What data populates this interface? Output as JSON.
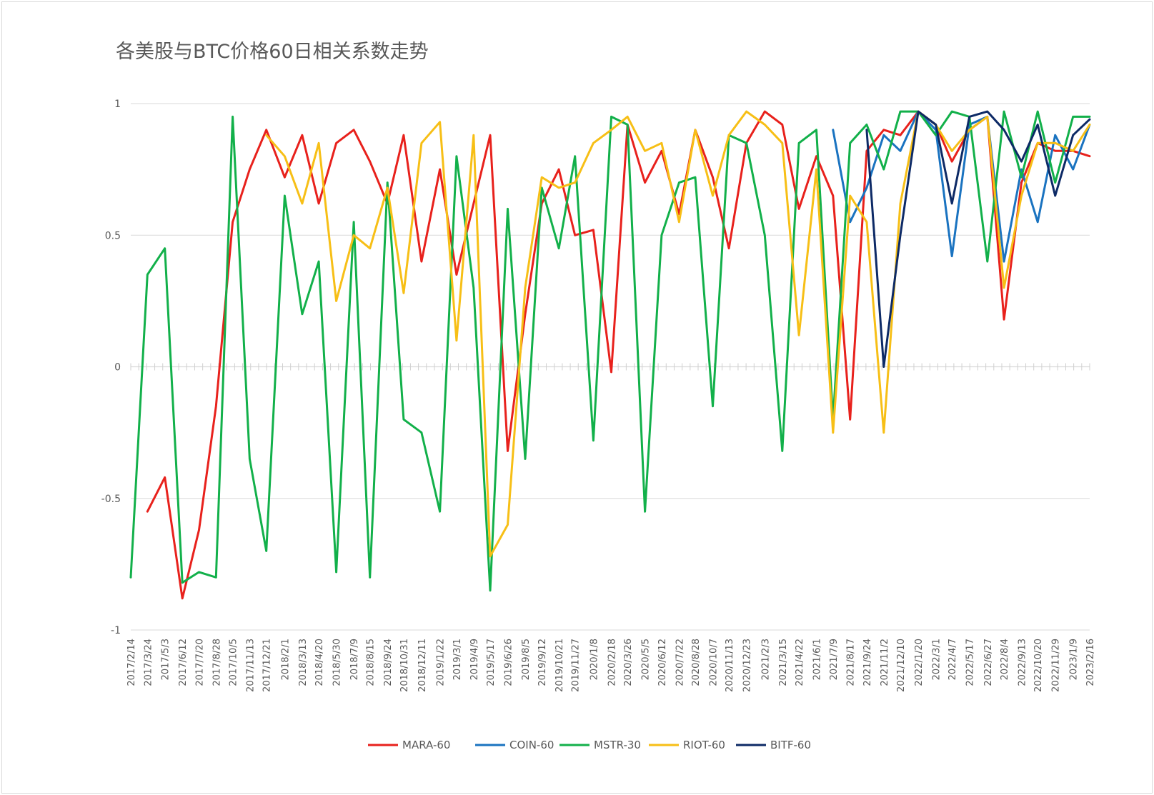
{
  "chart_data": {
    "type": "line",
    "title": "各美股与BTC价格60日相关系数走势",
    "xlabel": "",
    "ylabel": "",
    "ylim": [
      -1,
      1
    ],
    "yticks": [
      "1",
      "0.5",
      "0",
      "-0.5",
      "-1"
    ],
    "grid": true,
    "legend_position": "bottom",
    "x_start": "2017-02-14",
    "x_end": "2023-02-16",
    "categories": [
      "2017/2/14",
      "2017/3/24",
      "2017/5/3",
      "2017/6/12",
      "2017/7/20",
      "2017/8/28",
      "2017/10/5",
      "2017/11/13",
      "2017/12/21",
      "2018/2/1",
      "2018/3/13",
      "2018/4/20",
      "2018/5/30",
      "2018/7/9",
      "2018/8/15",
      "2018/9/24",
      "2018/10/31",
      "2018/12/11",
      "2019/1/22",
      "2019/3/1",
      "2019/4/9",
      "2019/5/17",
      "2019/6/26",
      "2019/8/5",
      "2019/9/12",
      "2019/10/21",
      "2019/11/27",
      "2020/1/8",
      "2020/2/18",
      "2020/3/26",
      "2020/5/5",
      "2020/6/12",
      "2020/7/22",
      "2020/8/28",
      "2020/10/7",
      "2020/11/13",
      "2020/12/23",
      "2021/2/3",
      "2021/3/15",
      "2021/4/22",
      "2021/6/1",
      "2021/7/9",
      "2021/8/17",
      "2021/9/24",
      "2021/11/2",
      "2021/12/10",
      "2022/1/20",
      "2022/3/1",
      "2022/4/7",
      "2022/5/17",
      "2022/6/27",
      "2022/8/4",
      "2022/9/13",
      "2022/10/20",
      "2022/11/29",
      "2023/1/9",
      "2023/2/16"
    ],
    "series": [
      {
        "name": "MARA-60",
        "color": "#e8211c",
        "x": [
          "2017/3/24",
          "2017/5/3",
          "2017/6/12",
          "2017/7/20",
          "2017/8/28",
          "2017/10/5",
          "2017/11/13",
          "2017/12/21",
          "2018/2/1",
          "2018/3/13",
          "2018/4/20",
          "2018/5/30",
          "2018/7/9",
          "2018/8/15",
          "2018/9/24",
          "2018/10/31",
          "2018/12/11",
          "2019/1/22",
          "2019/3/1",
          "2019/4/9",
          "2019/5/17",
          "2019/6/26",
          "2019/8/5",
          "2019/9/12",
          "2019/10/21",
          "2019/11/27",
          "2020/1/8",
          "2020/2/18",
          "2020/3/26",
          "2020/5/5",
          "2020/6/12",
          "2020/7/22",
          "2020/8/28",
          "2020/10/7",
          "2020/11/13",
          "2020/12/23",
          "2021/2/3",
          "2021/3/15",
          "2021/4/22",
          "2021/6/1",
          "2021/7/9",
          "2021/8/17",
          "2021/9/24",
          "2021/11/2",
          "2021/12/10",
          "2022/1/20",
          "2022/3/1",
          "2022/4/7",
          "2022/5/17",
          "2022/6/27",
          "2022/8/4",
          "2022/9/13",
          "2022/10/20",
          "2022/11/29",
          "2023/1/9",
          "2023/2/16"
        ],
        "values": [
          -0.55,
          -0.42,
          -0.88,
          -0.62,
          -0.15,
          0.55,
          0.75,
          0.9,
          0.72,
          0.88,
          0.62,
          0.85,
          0.9,
          0.78,
          0.62,
          0.88,
          0.4,
          0.75,
          0.35,
          0.62,
          0.88,
          -0.32,
          0.2,
          0.62,
          0.75,
          0.5,
          0.52,
          -0.02,
          0.92,
          0.7,
          0.82,
          0.58,
          0.9,
          0.72,
          0.45,
          0.85,
          0.97,
          0.92,
          0.6,
          0.8,
          0.65,
          -0.2,
          0.82,
          0.9,
          0.88,
          0.97,
          0.92,
          0.78,
          0.9,
          0.95,
          0.18,
          0.7,
          0.85,
          0.82,
          0.82,
          0.8
        ]
      },
      {
        "name": "COIN-60",
        "color": "#1a73c0",
        "x": [
          "2021/7/9",
          "2021/8/17",
          "2021/9/24",
          "2021/11/2",
          "2021/12/10",
          "2022/1/20",
          "2022/3/1",
          "2022/4/7",
          "2022/5/17",
          "2022/6/27",
          "2022/8/4",
          "2022/9/13",
          "2022/10/20",
          "2022/11/29",
          "2023/1/9",
          "2023/2/16"
        ],
        "values": [
          0.9,
          0.55,
          0.68,
          0.88,
          0.82,
          0.97,
          0.9,
          0.42,
          0.92,
          0.95,
          0.4,
          0.75,
          0.55,
          0.88,
          0.75,
          0.92
        ]
      },
      {
        "name": "MSTR-30",
        "color": "#12b04a",
        "x": [
          "2017/2/14",
          "2017/3/24",
          "2017/5/3",
          "2017/6/12",
          "2017/7/20",
          "2017/8/28",
          "2017/10/5",
          "2017/11/13",
          "2017/12/21",
          "2018/2/1",
          "2018/3/13",
          "2018/4/20",
          "2018/5/30",
          "2018/7/9",
          "2018/8/15",
          "2018/9/24",
          "2018/10/31",
          "2018/12/11",
          "2019/1/22",
          "2019/3/1",
          "2019/4/9",
          "2019/5/17",
          "2019/6/26",
          "2019/8/5",
          "2019/9/12",
          "2019/10/21",
          "2019/11/27",
          "2020/1/8",
          "2020/2/18",
          "2020/3/26",
          "2020/5/5",
          "2020/6/12",
          "2020/7/22",
          "2020/8/28",
          "2020/10/7",
          "2020/11/13",
          "2020/12/23",
          "2021/2/3",
          "2021/3/15",
          "2021/4/22",
          "2021/6/1",
          "2021/7/9",
          "2021/8/17",
          "2021/9/24",
          "2021/11/2",
          "2021/12/10",
          "2022/1/20",
          "2022/3/1",
          "2022/4/7",
          "2022/5/17",
          "2022/6/27",
          "2022/8/4",
          "2022/9/13",
          "2022/10/20",
          "2022/11/29",
          "2023/1/9",
          "2023/2/16"
        ],
        "values": [
          -0.8,
          0.35,
          0.45,
          -0.82,
          -0.78,
          -0.8,
          0.95,
          -0.35,
          -0.7,
          0.65,
          0.2,
          0.4,
          -0.78,
          0.55,
          -0.8,
          0.7,
          -0.2,
          -0.25,
          -0.55,
          0.8,
          0.3,
          -0.85,
          0.6,
          -0.35,
          0.68,
          0.45,
          0.8,
          -0.28,
          0.95,
          0.92,
          -0.55,
          0.5,
          0.7,
          0.72,
          -0.15,
          0.88,
          0.85,
          0.5,
          -0.32,
          0.85,
          0.9,
          -0.2,
          0.85,
          0.92,
          0.75,
          0.97,
          0.97,
          0.88,
          0.97,
          0.95,
          0.4,
          0.97,
          0.72,
          0.97,
          0.7,
          0.95,
          0.95
        ]
      },
      {
        "name": "RIOT-60",
        "color": "#f7bf16",
        "x": [
          "2017/12/21",
          "2018/2/1",
          "2018/3/13",
          "2018/4/20",
          "2018/5/30",
          "2018/7/9",
          "2018/8/15",
          "2018/9/24",
          "2018/10/31",
          "2018/12/11",
          "2019/1/22",
          "2019/3/1",
          "2019/4/9",
          "2019/5/17",
          "2019/6/26",
          "2019/8/5",
          "2019/9/12",
          "2019/10/21",
          "2019/11/27",
          "2020/1/8",
          "2020/2/18",
          "2020/3/26",
          "2020/5/5",
          "2020/6/12",
          "2020/7/22",
          "2020/8/28",
          "2020/10/7",
          "2020/11/13",
          "2020/12/23",
          "2021/2/3",
          "2021/3/15",
          "2021/4/22",
          "2021/6/1",
          "2021/7/9",
          "2021/8/17",
          "2021/9/24",
          "2021/11/2",
          "2021/12/10",
          "2022/1/20",
          "2022/3/1",
          "2022/4/7",
          "2022/5/17",
          "2022/6/27",
          "2022/8/4",
          "2022/9/13",
          "2022/10/20",
          "2022/11/29",
          "2023/1/9",
          "2023/2/16"
        ],
        "values": [
          0.88,
          0.8,
          0.62,
          0.85,
          0.25,
          0.5,
          0.45,
          0.68,
          0.28,
          0.85,
          0.93,
          0.1,
          0.88,
          -0.72,
          -0.6,
          0.3,
          0.72,
          0.68,
          0.7,
          0.85,
          0.9,
          0.95,
          0.82,
          0.85,
          0.55,
          0.9,
          0.65,
          0.88,
          0.97,
          0.92,
          0.85,
          0.12,
          0.75,
          -0.25,
          0.65,
          0.55,
          -0.25,
          0.62,
          0.97,
          0.92,
          0.82,
          0.9,
          0.95,
          0.3,
          0.65,
          0.85,
          0.85,
          0.82,
          0.92
        ]
      },
      {
        "name": "BITF-60",
        "color": "#0d2a66",
        "x": [
          "2021/9/24",
          "2021/11/2",
          "2021/12/10",
          "2022/1/20",
          "2022/3/1",
          "2022/4/7",
          "2022/5/17",
          "2022/6/27",
          "2022/8/4",
          "2022/9/13",
          "2022/10/20",
          "2022/11/29",
          "2023/1/9",
          "2023/2/16"
        ],
        "values": [
          0.9,
          0.0,
          0.5,
          0.97,
          0.92,
          0.62,
          0.95,
          0.97,
          0.9,
          0.78,
          0.92,
          0.65,
          0.88,
          0.94
        ]
      }
    ]
  }
}
